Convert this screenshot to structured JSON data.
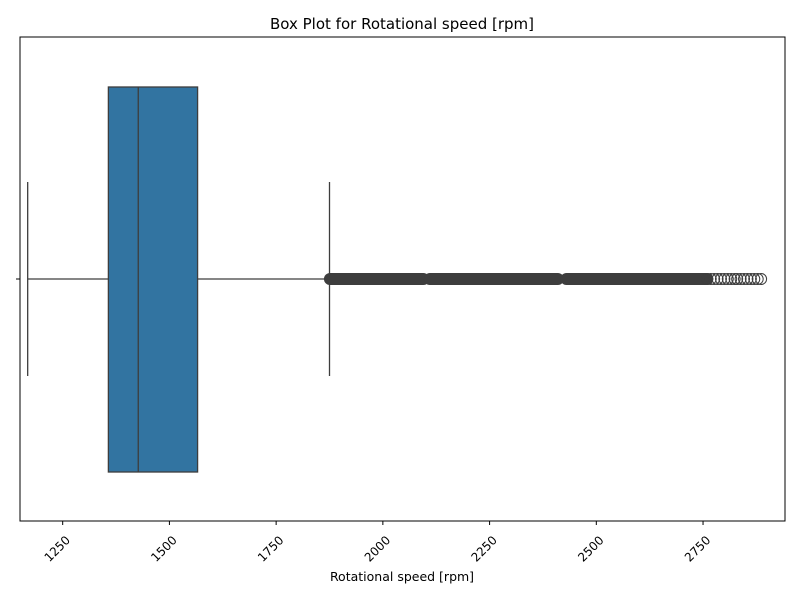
{
  "chart_data": {
    "type": "box",
    "orientation": "horizontal",
    "title": "Box Plot for Rotational speed [rpm]",
    "xlabel": "Rotational speed [rpm]",
    "ylabel": "",
    "xlim": [
      1150,
      2942
    ],
    "xticks": [
      1250,
      1500,
      1750,
      2000,
      2250,
      2500,
      2750
    ],
    "xtick_rotation": 45,
    "grid": false,
    "box": {
      "whisker_low": 1168,
      "q1": 1357,
      "median": 1427,
      "q3": 1566,
      "whisker_high": 1875,
      "box_color": "#3274a1",
      "line_color": "#3d3d3d"
    },
    "outliers": {
      "range": [
        1876,
        2886
      ],
      "dense_segments": [
        [
          1876,
          2095
        ],
        [
          2110,
          2410
        ],
        [
          2430,
          2760
        ]
      ],
      "sparse_segments": [
        [
          2760,
          2830
        ],
        [
          2830,
          2886
        ]
      ],
      "color": "#3d3d3d"
    }
  }
}
